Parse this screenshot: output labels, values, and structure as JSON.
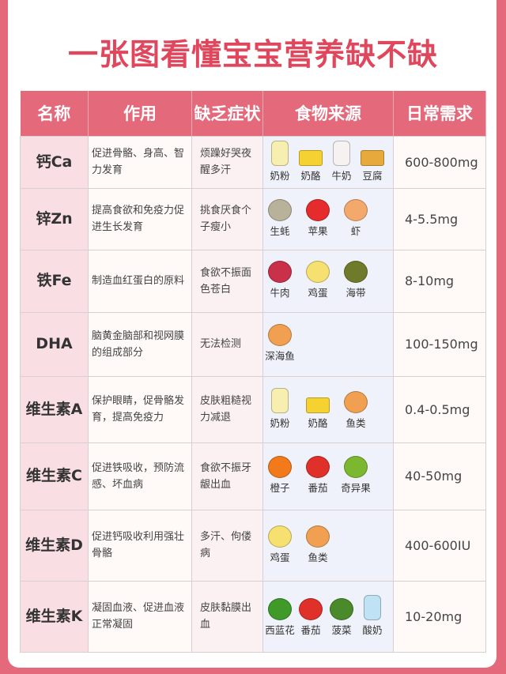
{
  "title": "一张图看懂宝宝营养缺不缺",
  "headers": [
    "名称",
    "作用",
    "缺乏症状",
    "食物来源",
    "日常需求"
  ],
  "rows": [
    {
      "name": "钙Ca",
      "func": "促进骨骼、身高、智力发育",
      "sym": "烦躁好哭夜醒多汗",
      "foods": [
        {
          "label": "奶粉",
          "icon": "baby-bottle",
          "color": "#f7efb0"
        },
        {
          "label": "奶酪",
          "icon": "cheese",
          "color": "#f5d232"
        },
        {
          "label": "牛奶",
          "icon": "milk-carton",
          "color": "#f7f2f2"
        },
        {
          "label": "豆腐",
          "icon": "tofu",
          "color": "#e7a93c"
        }
      ],
      "need": "600-800mg"
    },
    {
      "name": "锌Zn",
      "func": "提高食欲和免疫力促进生长发育",
      "sym": "挑食厌食个子瘦小",
      "foods": [
        {
          "label": "生蚝",
          "icon": "oyster",
          "color": "#b9b29a"
        },
        {
          "label": "苹果",
          "icon": "apple",
          "color": "#e52b2b"
        },
        {
          "label": "虾",
          "icon": "shrimp",
          "color": "#f3a96b"
        }
      ],
      "need": "4-5.5mg"
    },
    {
      "name": "铁Fe",
      "func": "制造血红蛋白的原料",
      "sym": "食欲不振面色苍白",
      "foods": [
        {
          "label": "牛肉",
          "icon": "beef",
          "color": "#c9304a"
        },
        {
          "label": "鸡蛋",
          "icon": "egg",
          "color": "#f5e070"
        },
        {
          "label": "海带",
          "icon": "kelp",
          "color": "#6f7a2a"
        }
      ],
      "need": "8-10mg"
    },
    {
      "name": "DHA",
      "func": "脑黄金脑部和视网膜的组成部分",
      "sym": "无法检测",
      "foods": [
        {
          "label": "深海鱼",
          "icon": "fish",
          "color": "#f0a050"
        }
      ],
      "need": "100-150mg"
    },
    {
      "name": "维生素A",
      "func": "保护眼睛，促骨骼发育，提高免疫力",
      "sym": "皮肤粗糙视力减退",
      "foods": [
        {
          "label": "奶粉",
          "icon": "baby-bottle",
          "color": "#f7efb0"
        },
        {
          "label": "奶酪",
          "icon": "cheese",
          "color": "#f5d232"
        },
        {
          "label": "鱼类",
          "icon": "fish",
          "color": "#f0a050"
        }
      ],
      "need": "0.4-0.5mg"
    },
    {
      "name": "维生素C",
      "func": "促进铁吸收，预防流感、坏血病",
      "sym": "食欲不振牙龈出血",
      "foods": [
        {
          "label": "橙子",
          "icon": "orange",
          "color": "#f27a1a"
        },
        {
          "label": "番茄",
          "icon": "tomato",
          "color": "#e0302a"
        },
        {
          "label": "奇异果",
          "icon": "kiwi",
          "color": "#7cb82f"
        }
      ],
      "need": "40-50mg"
    },
    {
      "name": "维生素D",
      "func": "促进钙吸收利用强壮骨骼",
      "sym": "多汗、佝偻病",
      "foods": [
        {
          "label": "鸡蛋",
          "icon": "egg",
          "color": "#f5e070"
        },
        {
          "label": "鱼类",
          "icon": "fish",
          "color": "#f0a050"
        }
      ],
      "need": "400-600IU"
    },
    {
      "name": "维生素K",
      "func": "凝固血液、促进血液正常凝固",
      "sym": "皮肤黏膜出血",
      "foods": [
        {
          "label": "西蓝花",
          "icon": "broccoli",
          "color": "#3f9a2a"
        },
        {
          "label": "番茄",
          "icon": "tomato",
          "color": "#e0302a"
        },
        {
          "label": "菠菜",
          "icon": "spinach",
          "color": "#4a8a2a"
        },
        {
          "label": "酸奶",
          "icon": "yogurt",
          "color": "#bfe3f5"
        }
      ],
      "need": "10-20mg"
    }
  ]
}
